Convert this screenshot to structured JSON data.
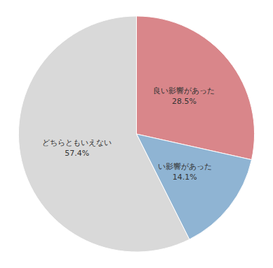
{
  "chart_data": {
    "type": "pie",
    "categories": [
      "良い影響があった",
      "い影響があった",
      "どちらともいえない"
    ],
    "values": [
      28.5,
      14.1,
      57.4
    ],
    "value_labels": [
      "28.5%",
      "14.1%",
      "57.4%"
    ],
    "colors": [
      "#d9868a",
      "#8fb4d3",
      "#d9d9d9"
    ],
    "data_labels": true
  }
}
